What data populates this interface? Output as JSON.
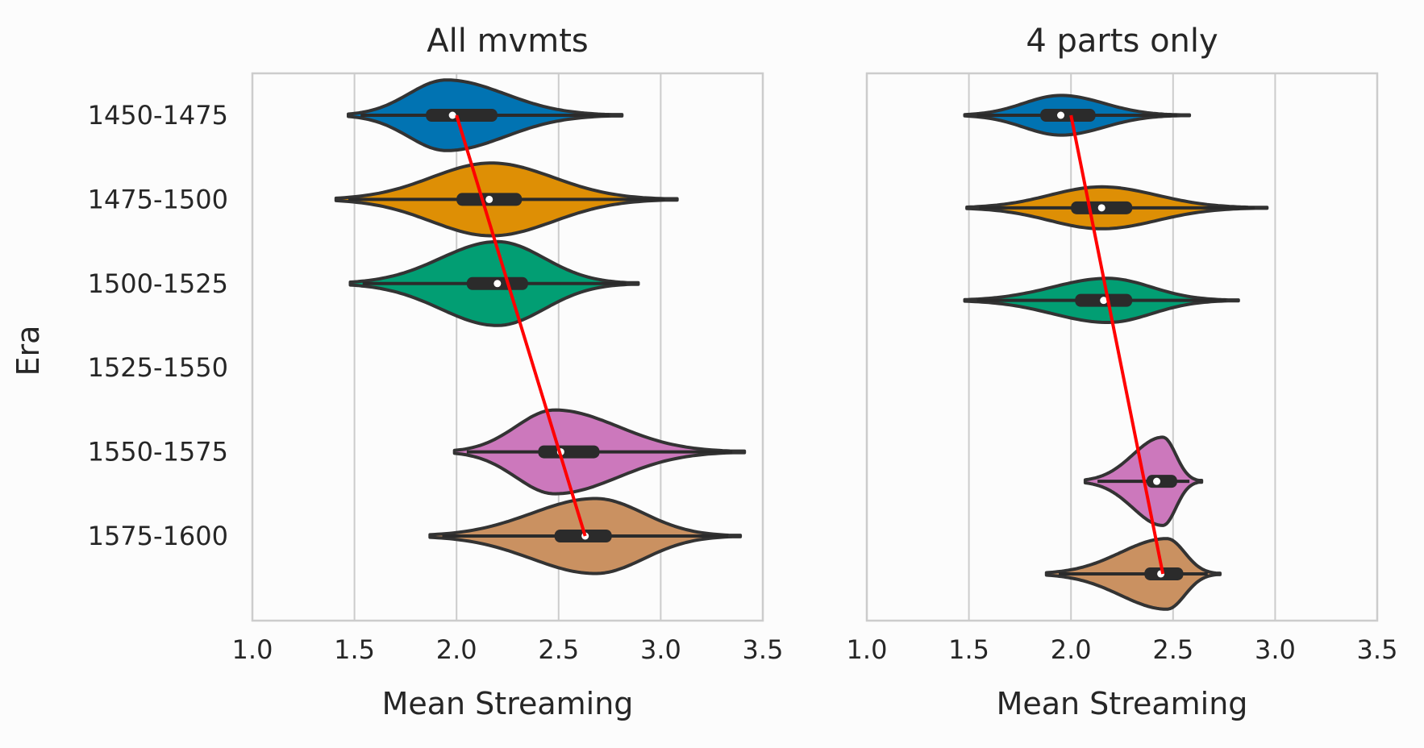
{
  "chart_data": [
    {
      "type": "violin",
      "title": "All mvmts",
      "xlabel": "Mean Streaming",
      "ylabel": "Era",
      "xlim": [
        1.0,
        3.5
      ],
      "xticks": [
        1.0,
        1.5,
        2.0,
        2.5,
        3.0,
        3.5
      ],
      "xtick_labels": [
        "1.0",
        "1.5",
        "2.0",
        "2.5",
        "3.0",
        "3.5"
      ],
      "categories": [
        "1450-1475",
        "1475-1500",
        "1500-1525",
        "1525-1550",
        "1550-1575",
        "1575-1600"
      ],
      "grid": true,
      "series": [
        {
          "category": "1450-1475",
          "color": "#0173b2",
          "min": 1.47,
          "q1": 1.85,
          "median": 1.98,
          "q3": 2.2,
          "max": 2.81,
          "mode": 1.95,
          "peak": 0.32
        },
        {
          "category": "1475-1500",
          "color": "#de8f05",
          "min": 1.41,
          "q1": 2.0,
          "median": 2.16,
          "q3": 2.32,
          "max": 3.08,
          "mode": 2.17,
          "peak": 0.33
        },
        {
          "category": "1500-1525",
          "color": "#029e73",
          "min": 1.48,
          "q1": 2.05,
          "median": 2.2,
          "q3": 2.35,
          "max": 2.89,
          "mode": 2.2,
          "peak": 0.38
        },
        {
          "category": "1550-1575",
          "color": "#cc78bc",
          "min": 1.99,
          "q1": 2.4,
          "median": 2.51,
          "q3": 2.7,
          "max": 3.41,
          "mode": 2.48,
          "peak": 0.38
        },
        {
          "category": "1575-1600",
          "color": "#ca9161",
          "min": 1.87,
          "q1": 2.48,
          "median": 2.63,
          "q3": 2.76,
          "max": 3.39,
          "mode": 2.68,
          "peak": 0.34
        }
      ],
      "trend_line": {
        "color": "#ff0000",
        "points": [
          {
            "era": "1450-1475",
            "x": 2.0
          },
          {
            "era": "1575-1600",
            "x": 2.63
          }
        ]
      }
    },
    {
      "type": "violin",
      "title": "4 parts only",
      "xlabel": "Mean Streaming",
      "xlim": [
        1.0,
        3.5
      ],
      "xticks": [
        1.0,
        1.5,
        2.0,
        2.5,
        3.0,
        3.5
      ],
      "xtick_labels": [
        "1.0",
        "1.5",
        "2.0",
        "2.5",
        "3.0",
        "3.5"
      ],
      "categories": [
        "1450-1475",
        "1475-1500",
        "1500-1525",
        "1525-1550",
        "1550-1575",
        "1575-1600"
      ],
      "grid": true,
      "series": [
        {
          "category": "1450-1475",
          "color": "#0173b2",
          "min": 1.48,
          "q1": 1.85,
          "median": 1.95,
          "q3": 2.12,
          "max": 2.58,
          "mode": 1.95,
          "peak": 0.18,
          "pos": 0
        },
        {
          "category": "1475-1500",
          "color": "#de8f05",
          "min": 1.49,
          "q1": 2.0,
          "median": 2.15,
          "q3": 2.3,
          "max": 2.96,
          "mode": 2.15,
          "peak": 0.19,
          "pos": 1.1
        },
        {
          "category": "1500-1525",
          "color": "#029e73",
          "min": 1.48,
          "q1": 2.02,
          "median": 2.16,
          "q3": 2.3,
          "max": 2.82,
          "mode": 2.18,
          "peak": 0.2,
          "pos": 2.2
        },
        {
          "category": "1550-1575",
          "color": "#cc78bc",
          "min": 2.07,
          "q1": 2.37,
          "median": 2.42,
          "q3": 2.52,
          "max": 2.64,
          "mode": 2.45,
          "peak": 0.4,
          "pos": 4.35
        },
        {
          "category": "1575-1600",
          "color": "#ca9161",
          "min": 1.88,
          "q1": 2.36,
          "median": 2.44,
          "q3": 2.55,
          "max": 2.73,
          "mode": 2.47,
          "peak": 0.32,
          "pos": 5.45
        }
      ],
      "trend_line": {
        "color": "#ff0000",
        "points": [
          {
            "era": "1450-1475",
            "x": 2.0
          },
          {
            "era": "1575-1600",
            "x": 2.45
          }
        ]
      }
    }
  ]
}
